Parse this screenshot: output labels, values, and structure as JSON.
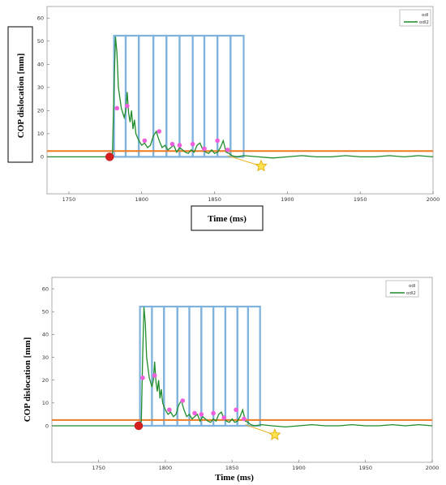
{
  "chart_data": [
    {
      "type": "line",
      "xlabel": "Time (ms)",
      "ylabel": "COP dislocation [mm]",
      "xlim": [
        1735,
        2000
      ],
      "ylim": [
        -16,
        65
      ],
      "x_ticks": [
        "1750",
        "1800",
        "1850",
        "1900",
        "1950",
        "2000"
      ],
      "y_ticks": [
        "0",
        "10",
        "20",
        "30",
        "40",
        "50",
        "60"
      ],
      "legend": [
        "odl",
        "odl2"
      ],
      "legend_position": "top-right",
      "grid": false,
      "threshold": 2.5,
      "onset_point": [
        1778,
        0
      ],
      "end_point": [
        1882,
        -4
      ],
      "series": [
        {
          "name": "odl2",
          "x": [
            1735,
            1760,
            1778,
            1779,
            1780,
            1781,
            1782,
            1783,
            1784,
            1786,
            1788,
            1789,
            1790,
            1791,
            1792,
            1793,
            1794,
            1795,
            1796,
            1798,
            1800,
            1802,
            1804,
            1806,
            1808,
            1810,
            1812,
            1814,
            1816,
            1818,
            1820,
            1822,
            1824,
            1826,
            1828,
            1830,
            1832,
            1834,
            1836,
            1838,
            1840,
            1842,
            1844,
            1846,
            1848,
            1850,
            1852,
            1854,
            1856,
            1858,
            1860,
            1862,
            1865,
            1870,
            1880,
            1890,
            1900,
            1910,
            1920,
            1930,
            1940,
            1950,
            1960,
            1970,
            1980,
            1990,
            2000
          ],
          "y": [
            0,
            0,
            0,
            0,
            2,
            30,
            52,
            45,
            30,
            21,
            17,
            20,
            28,
            19,
            15,
            20,
            12,
            16,
            10,
            7,
            5,
            6,
            4,
            5,
            9,
            11,
            7,
            4,
            5,
            3,
            4,
            5,
            2,
            4,
            3,
            2,
            1.5,
            3,
            2,
            5,
            6,
            3,
            2,
            1.5,
            3,
            1.5,
            2,
            4,
            7,
            2,
            1.5,
            0.5,
            0,
            0.5,
            0,
            -0.5,
            0,
            0.5,
            0,
            0,
            0.5,
            0,
            0,
            0.5,
            0,
            0.5,
            0
          ]
        }
      ],
      "peaks": [
        {
          "x": 1783,
          "y": 21
        },
        {
          "x": 1790,
          "y": 22
        },
        {
          "x": 1802,
          "y": 7
        },
        {
          "x": 1812,
          "y": 11
        },
        {
          "x": 1821,
          "y": 5.5
        },
        {
          "x": 1826,
          "y": 5
        },
        {
          "x": 1835,
          "y": 5.5
        },
        {
          "x": 1843,
          "y": 3.5
        },
        {
          "x": 1852,
          "y": 7
        },
        {
          "x": 1859,
          "y": 3
        }
      ],
      "windows": [
        [
          1781,
          1789
        ],
        [
          1789,
          1798
        ],
        [
          1798,
          1808
        ],
        [
          1808,
          1817
        ],
        [
          1817,
          1826
        ],
        [
          1826,
          1835
        ],
        [
          1835,
          1843
        ],
        [
          1843,
          1852
        ],
        [
          1852,
          1861
        ],
        [
          1861,
          1870
        ]
      ]
    },
    {
      "type": "line",
      "xlabel": "Time (ms)",
      "ylabel": "COP dislocation [mm]",
      "xlim": [
        1715,
        2000
      ],
      "ylim": [
        -16,
        65
      ],
      "x_ticks": [
        "1750",
        "1800",
        "1850",
        "1900",
        "1950",
        "2000"
      ],
      "y_ticks": [
        "0",
        "10",
        "20",
        "30",
        "40",
        "50",
        "60"
      ],
      "legend": [
        "odl",
        "odl2"
      ],
      "legend_position": "top-right",
      "grid": false,
      "threshold": 2.5,
      "onset_point": [
        1780,
        0
      ],
      "end_point": [
        1882,
        -4
      ],
      "series": [
        {
          "name": "odl2",
          "x": [
            1715,
            1760,
            1780,
            1781,
            1782,
            1783,
            1784,
            1785,
            1786,
            1788,
            1790,
            1791,
            1792,
            1793,
            1794,
            1795,
            1796,
            1797,
            1798,
            1800,
            1802,
            1804,
            1806,
            1808,
            1810,
            1812,
            1814,
            1816,
            1818,
            1820,
            1822,
            1824,
            1826,
            1828,
            1830,
            1832,
            1834,
            1836,
            1838,
            1840,
            1842,
            1844,
            1846,
            1848,
            1850,
            1852,
            1854,
            1856,
            1858,
            1860,
            1862,
            1864,
            1867,
            1872,
            1880,
            1890,
            1900,
            1910,
            1920,
            1930,
            1940,
            1950,
            1960,
            1970,
            1980,
            1990,
            2000
          ],
          "y": [
            0,
            0,
            0,
            0,
            2,
            30,
            52,
            45,
            30,
            21,
            17,
            20,
            28,
            19,
            15,
            20,
            12,
            16,
            10,
            7,
            5,
            6,
            4,
            5,
            9,
            11,
            7,
            4,
            5,
            3,
            4,
            5,
            2,
            4,
            3,
            2,
            1.5,
            3,
            2,
            5,
            6,
            3,
            2,
            1.5,
            3,
            1.5,
            2,
            4,
            7,
            2,
            1.5,
            0.5,
            0,
            0.5,
            0,
            -0.5,
            0,
            0.5,
            0,
            0,
            0.5,
            0,
            0,
            0.5,
            0,
            0.5,
            0
          ]
        }
      ],
      "peaks": [
        {
          "x": 1783,
          "y": 21
        },
        {
          "x": 1792,
          "y": 22
        },
        {
          "x": 1803,
          "y": 7
        },
        {
          "x": 1813,
          "y": 11
        },
        {
          "x": 1822,
          "y": 5.5
        },
        {
          "x": 1827,
          "y": 5
        },
        {
          "x": 1836,
          "y": 5.5
        },
        {
          "x": 1844,
          "y": 3.5
        },
        {
          "x": 1853,
          "y": 7
        },
        {
          "x": 1859,
          "y": 3
        }
      ],
      "windows": [
        [
          1781,
          1790
        ],
        [
          1790,
          1799
        ],
        [
          1799,
          1809
        ],
        [
          1809,
          1818
        ],
        [
          1818,
          1827
        ],
        [
          1827,
          1836
        ],
        [
          1836,
          1845
        ],
        [
          1845,
          1854
        ],
        [
          1854,
          1862
        ],
        [
          1862,
          1871
        ]
      ]
    }
  ]
}
